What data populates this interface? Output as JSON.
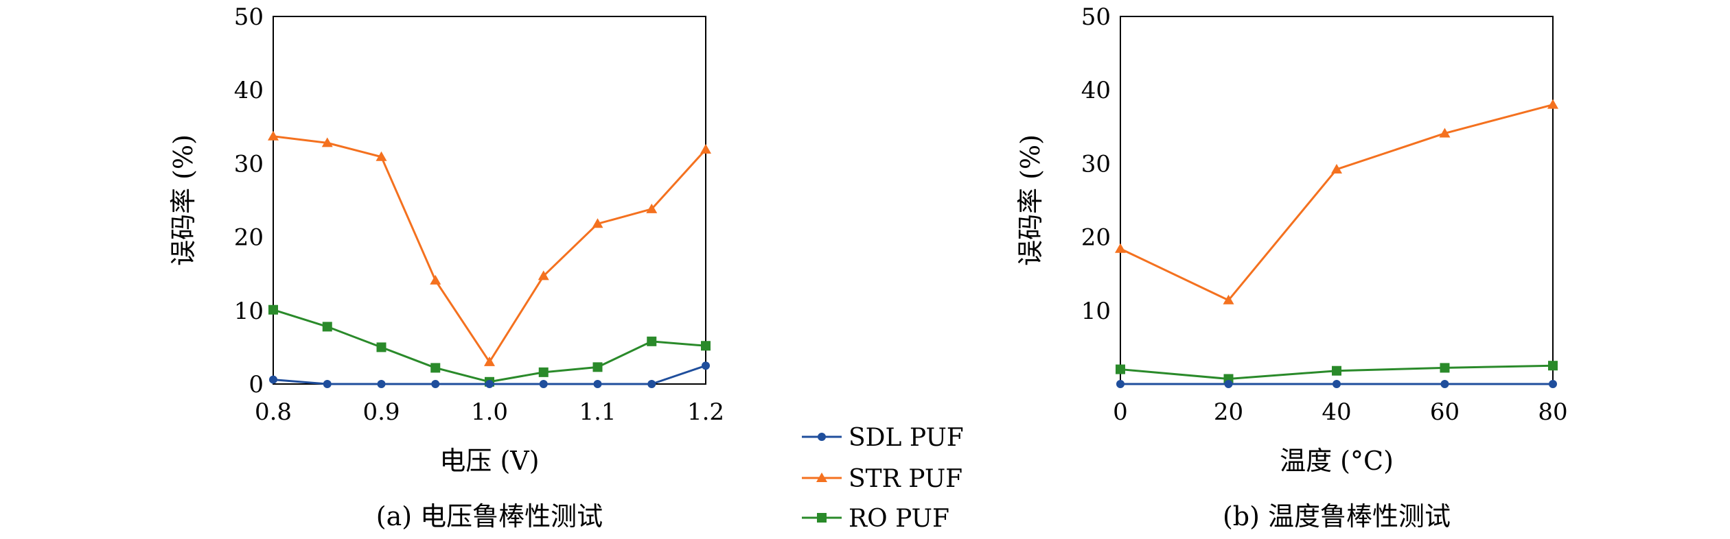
{
  "legend": {
    "items": [
      {
        "name": "SDL PUF",
        "color": "#1f4e9c",
        "marker": "circle"
      },
      {
        "name": "STR PUF",
        "color": "#f4711f",
        "marker": "triangle"
      },
      {
        "name": "RO PUF",
        "color": "#2a8a2a",
        "marker": "square"
      }
    ]
  },
  "chart_data": [
    {
      "type": "line",
      "caption": "(a) 电压鲁棒性测试",
      "xlabel": "电压 (V)",
      "ylabel": "误码率 (%)",
      "xlim": [
        0.8,
        1.2
      ],
      "ylim": [
        0,
        50
      ],
      "xticks": [
        0.8,
        0.9,
        1.0,
        1.1,
        1.2
      ],
      "xtick_labels": [
        "0.8",
        "0.9",
        "1.0",
        "1.1",
        "1.2"
      ],
      "yticks": [
        0,
        10,
        20,
        30,
        40,
        50
      ],
      "ytick_labels": [
        "0",
        "10",
        "20",
        "30",
        "40",
        "50"
      ],
      "x": [
        0.8,
        0.85,
        0.9,
        0.95,
        1.0,
        1.05,
        1.1,
        1.15,
        1.2
      ],
      "series": [
        {
          "name": "SDL PUF",
          "values": [
            0.6,
            0.0,
            0.0,
            0.0,
            0.0,
            0.0,
            0.0,
            0.0,
            2.5
          ]
        },
        {
          "name": "STR PUF",
          "values": [
            33.7,
            32.8,
            30.9,
            14.1,
            3.0,
            14.7,
            21.8,
            23.8,
            31.9
          ]
        },
        {
          "name": "RO PUF",
          "values": [
            10.1,
            7.8,
            5.0,
            2.2,
            0.3,
            1.6,
            2.3,
            5.8,
            5.2
          ]
        }
      ],
      "grid": false
    },
    {
      "type": "line",
      "caption": "(b) 温度鲁棒性测试",
      "xlabel": "温度 (°C)",
      "ylabel": "误码率 (%)",
      "xlim": [
        0,
        80
      ],
      "ylim": [
        0,
        50
      ],
      "xticks": [
        0,
        20,
        40,
        60,
        80
      ],
      "xtick_labels": [
        "0",
        "20",
        "40",
        "60",
        "80"
      ],
      "yticks": [
        10,
        20,
        30,
        40,
        50
      ],
      "ytick_labels": [
        "10",
        "20",
        "30",
        "40",
        "50"
      ],
      "x": [
        0,
        20,
        40,
        60,
        80
      ],
      "series": [
        {
          "name": "SDL PUF",
          "values": [
            0.0,
            0.0,
            0.0,
            0.0,
            0.0
          ]
        },
        {
          "name": "STR PUF",
          "values": [
            18.4,
            11.4,
            29.2,
            34.1,
            38.0
          ]
        },
        {
          "name": "RO PUF",
          "values": [
            2.0,
            0.7,
            1.8,
            2.2,
            2.5
          ]
        }
      ],
      "grid": false
    }
  ]
}
